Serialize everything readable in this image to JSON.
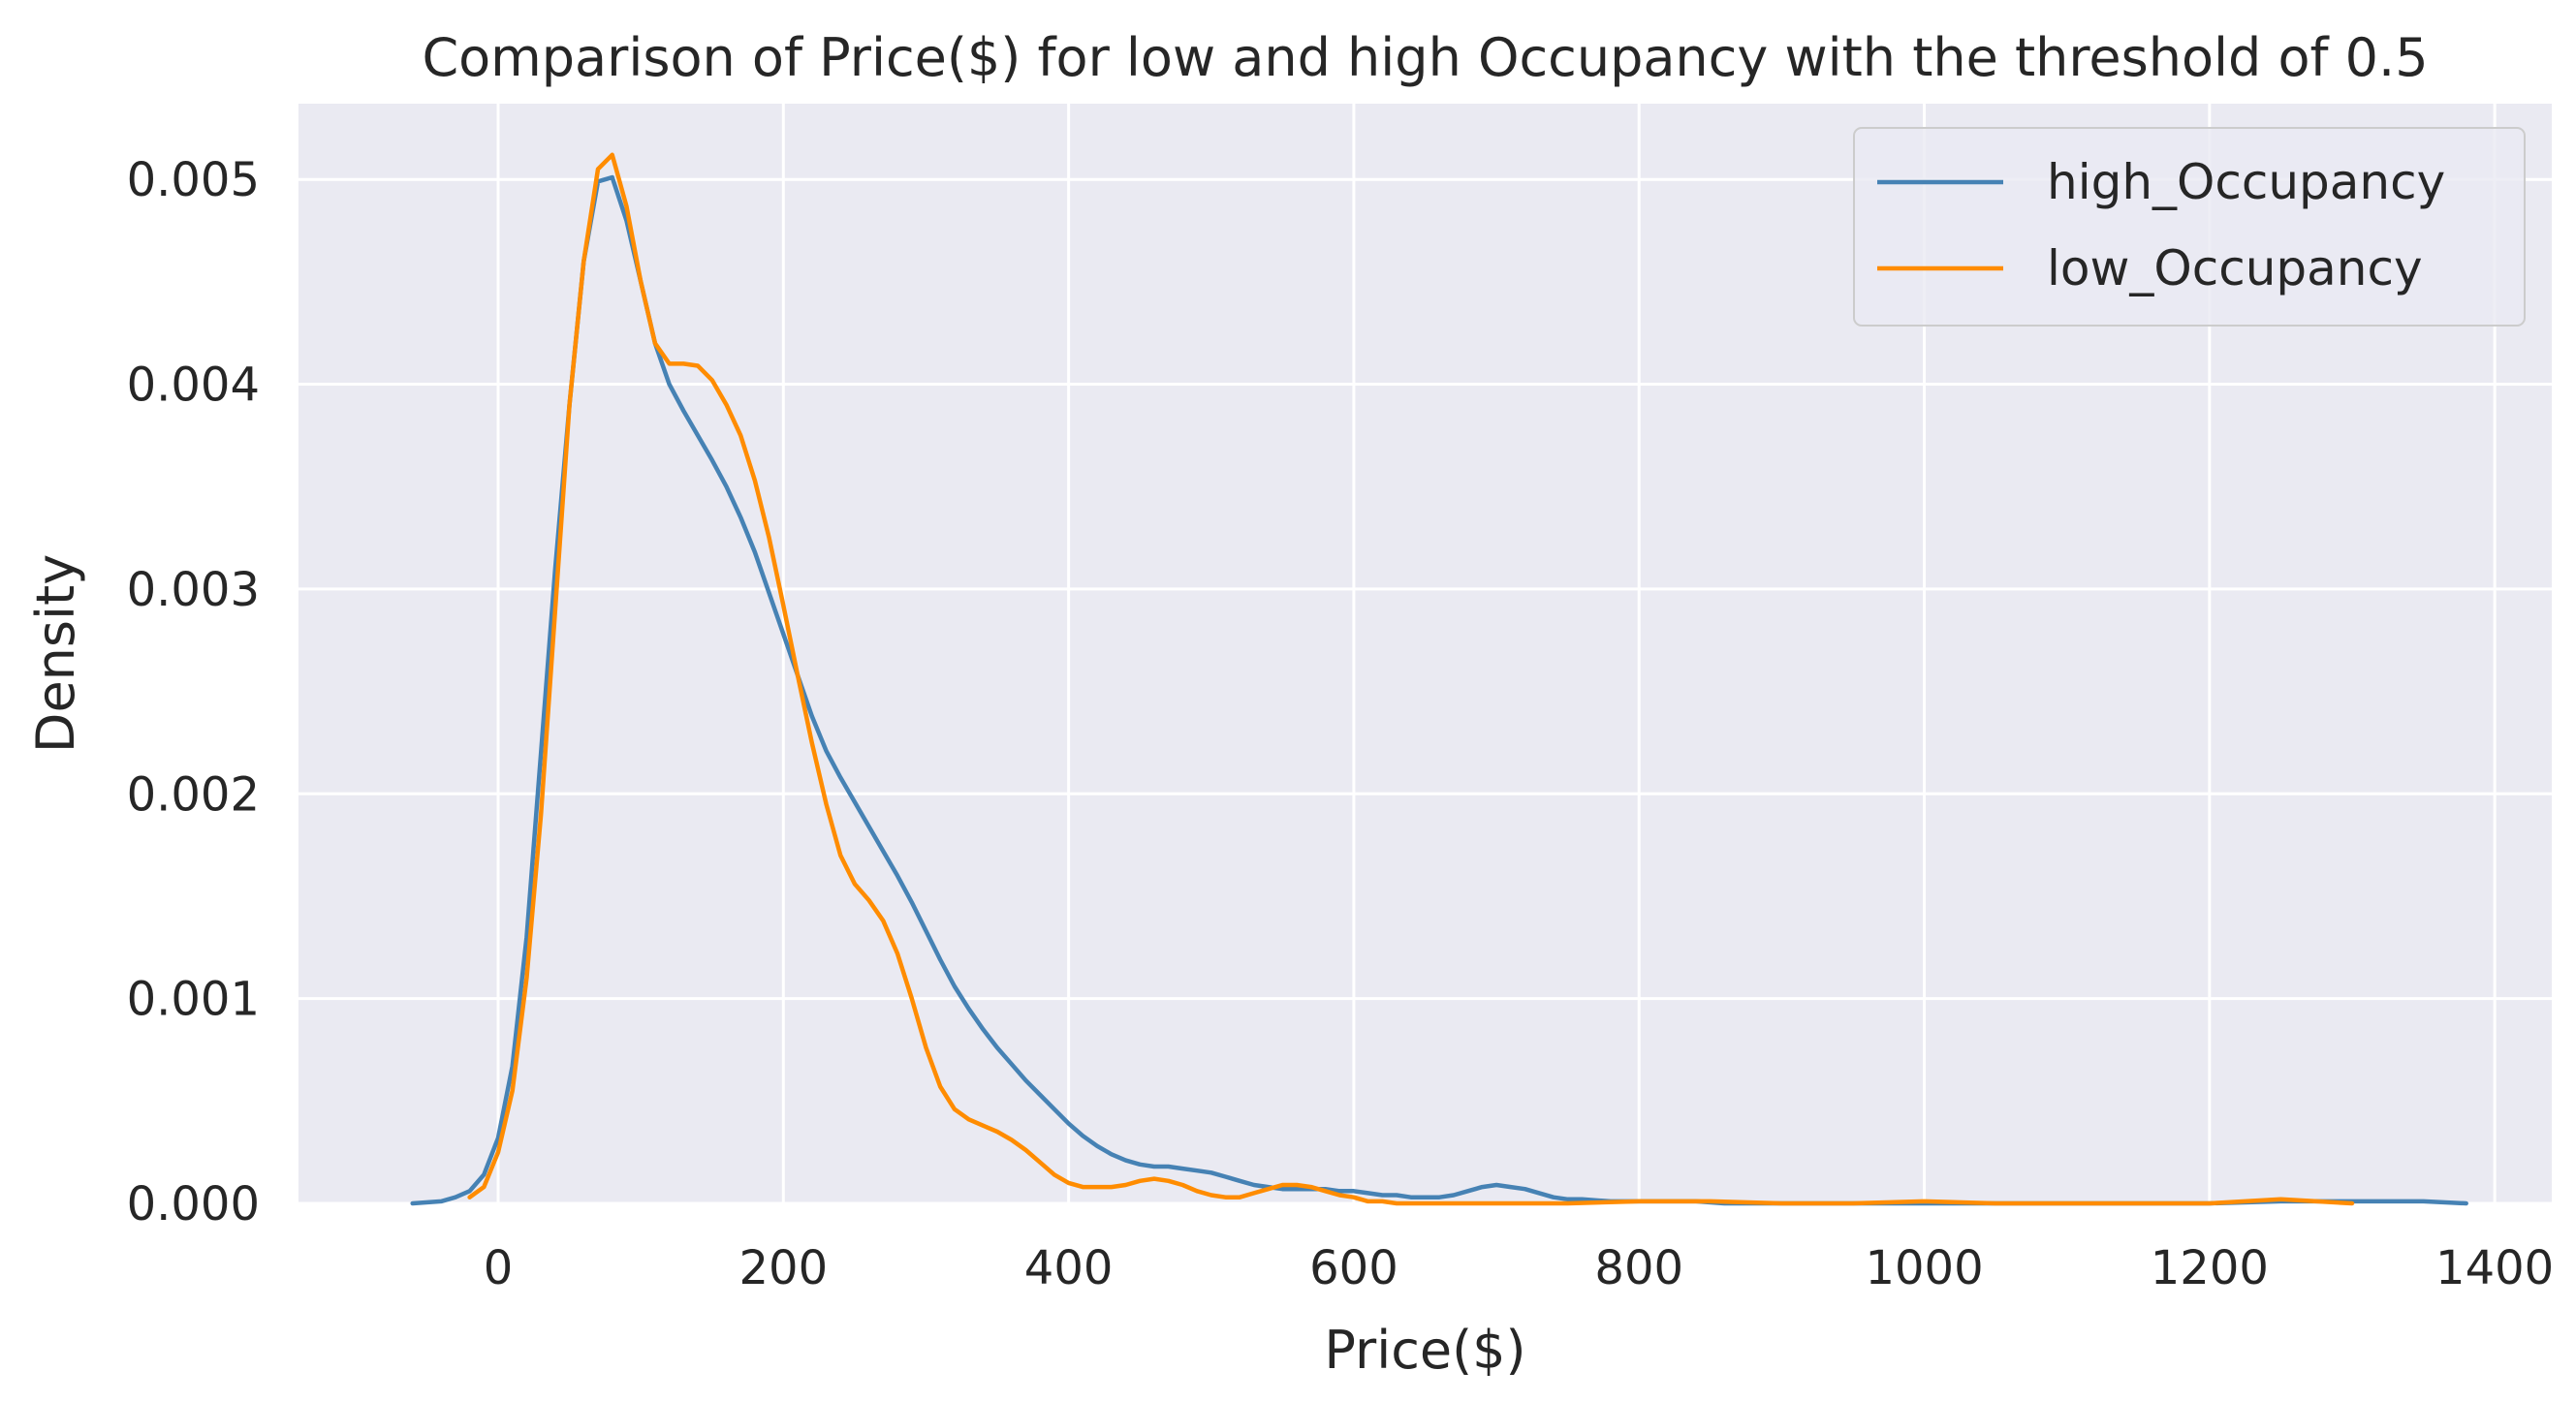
{
  "chart_data": {
    "type": "line",
    "title": "Comparison of Price($) for low and high Occupancy with the threshold of 0.5",
    "xlabel": "Price($)",
    "ylabel": "Density",
    "xlim": [
      -140,
      1440
    ],
    "ylim": [
      0,
      0.00537
    ],
    "xticks": [
      0,
      200,
      400,
      600,
      800,
      1000,
      1200,
      1400
    ],
    "xtick_labels": [
      "0",
      "200",
      "400",
      "600",
      "800",
      "1000",
      "1200",
      "1400"
    ],
    "yticks": [
      0,
      0.001,
      0.002,
      0.003,
      0.004,
      0.005
    ],
    "ytick_labels": [
      "0.000",
      "0.001",
      "0.002",
      "0.003",
      "0.004",
      "0.005"
    ],
    "grid": true,
    "legend_position": "top-right",
    "colors": {
      "background": "#eaeaf2",
      "grid": "#ffffff",
      "text": "#262626"
    },
    "series": [
      {
        "name": "high_Occupancy",
        "color": "#4682b4",
        "x": [
          -60,
          -40,
          -30,
          -20,
          -10,
          0,
          10,
          20,
          30,
          40,
          50,
          60,
          70,
          80,
          90,
          100,
          110,
          120,
          130,
          140,
          150,
          160,
          170,
          180,
          190,
          200,
          210,
          220,
          230,
          240,
          250,
          260,
          270,
          280,
          290,
          300,
          310,
          320,
          330,
          340,
          350,
          360,
          370,
          380,
          390,
          400,
          410,
          420,
          430,
          440,
          450,
          460,
          470,
          480,
          490,
          500,
          510,
          520,
          530,
          540,
          550,
          560,
          570,
          580,
          590,
          600,
          610,
          620,
          630,
          640,
          650,
          660,
          670,
          680,
          690,
          700,
          710,
          720,
          730,
          740,
          750,
          760,
          780,
          800,
          820,
          840,
          860,
          880,
          900,
          950,
          1000,
          1050,
          1100,
          1150,
          1200,
          1250,
          1300,
          1350,
          1380
        ],
        "y": [
          0.0,
          1e-05,
          3e-05,
          6e-05,
          0.00014,
          0.00032,
          0.00067,
          0.0013,
          0.0022,
          0.0031,
          0.0039,
          0.0046,
          0.00499,
          0.00501,
          0.0048,
          0.0045,
          0.0042,
          0.004,
          0.00387,
          0.00375,
          0.00363,
          0.0035,
          0.00335,
          0.00318,
          0.00298,
          0.00278,
          0.00258,
          0.00238,
          0.00221,
          0.00208,
          0.00196,
          0.00184,
          0.00172,
          0.0016,
          0.00147,
          0.00133,
          0.00119,
          0.00106,
          0.00095,
          0.00085,
          0.00076,
          0.00068,
          0.0006,
          0.00053,
          0.00046,
          0.00039,
          0.00033,
          0.00028,
          0.00024,
          0.00021,
          0.00019,
          0.00018,
          0.00018,
          0.00017,
          0.00016,
          0.00015,
          0.00013,
          0.00011,
          9e-05,
          8e-05,
          7e-05,
          7e-05,
          7e-05,
          7e-05,
          6e-05,
          6e-05,
          5e-05,
          4e-05,
          4e-05,
          3e-05,
          3e-05,
          3e-05,
          4e-05,
          6e-05,
          8e-05,
          9e-05,
          8e-05,
          7e-05,
          5e-05,
          3e-05,
          2e-05,
          2e-05,
          1e-05,
          1e-05,
          1e-05,
          1e-05,
          0.0,
          0.0,
          0.0,
          0.0,
          0.0,
          0.0,
          0.0,
          0.0,
          0.0,
          1e-05,
          1e-05,
          1e-05,
          0.0
        ]
      },
      {
        "name": "low_Occupancy",
        "color": "#ff8c00",
        "x": [
          -20,
          -10,
          0,
          10,
          20,
          30,
          40,
          50,
          60,
          70,
          80,
          90,
          100,
          110,
          120,
          130,
          140,
          150,
          160,
          170,
          180,
          190,
          200,
          210,
          220,
          230,
          240,
          250,
          260,
          270,
          280,
          290,
          300,
          310,
          320,
          330,
          340,
          350,
          360,
          370,
          380,
          390,
          400,
          410,
          420,
          430,
          440,
          450,
          460,
          470,
          480,
          490,
          500,
          510,
          520,
          530,
          540,
          550,
          560,
          570,
          580,
          590,
          600,
          610,
          620,
          630,
          640,
          650,
          660,
          680,
          700,
          750,
          800,
          850,
          900,
          950,
          1000,
          1050,
          1100,
          1150,
          1200,
          1250,
          1300
        ],
        "y": [
          3e-05,
          8e-05,
          0.00025,
          0.00055,
          0.0011,
          0.0019,
          0.0029,
          0.0039,
          0.0046,
          0.00505,
          0.00512,
          0.00487,
          0.0045,
          0.0042,
          0.0041,
          0.0041,
          0.00409,
          0.00402,
          0.0039,
          0.00375,
          0.00353,
          0.00325,
          0.00292,
          0.00258,
          0.00225,
          0.00195,
          0.0017,
          0.00156,
          0.00148,
          0.00138,
          0.00122,
          0.001,
          0.00076,
          0.00057,
          0.00046,
          0.00041,
          0.00038,
          0.00035,
          0.00031,
          0.00026,
          0.0002,
          0.00014,
          0.0001,
          8e-05,
          8e-05,
          8e-05,
          9e-05,
          0.00011,
          0.00012,
          0.00011,
          9e-05,
          6e-05,
          4e-05,
          3e-05,
          3e-05,
          5e-05,
          7e-05,
          9e-05,
          9e-05,
          8e-05,
          6e-05,
          4e-05,
          3e-05,
          1e-05,
          1e-05,
          0.0,
          0.0,
          0.0,
          0.0,
          0.0,
          0.0,
          0.0,
          1e-05,
          1e-05,
          0.0,
          0.0,
          1e-05,
          0.0,
          0.0,
          0.0,
          0.0,
          2e-05,
          0.0
        ]
      }
    ]
  }
}
